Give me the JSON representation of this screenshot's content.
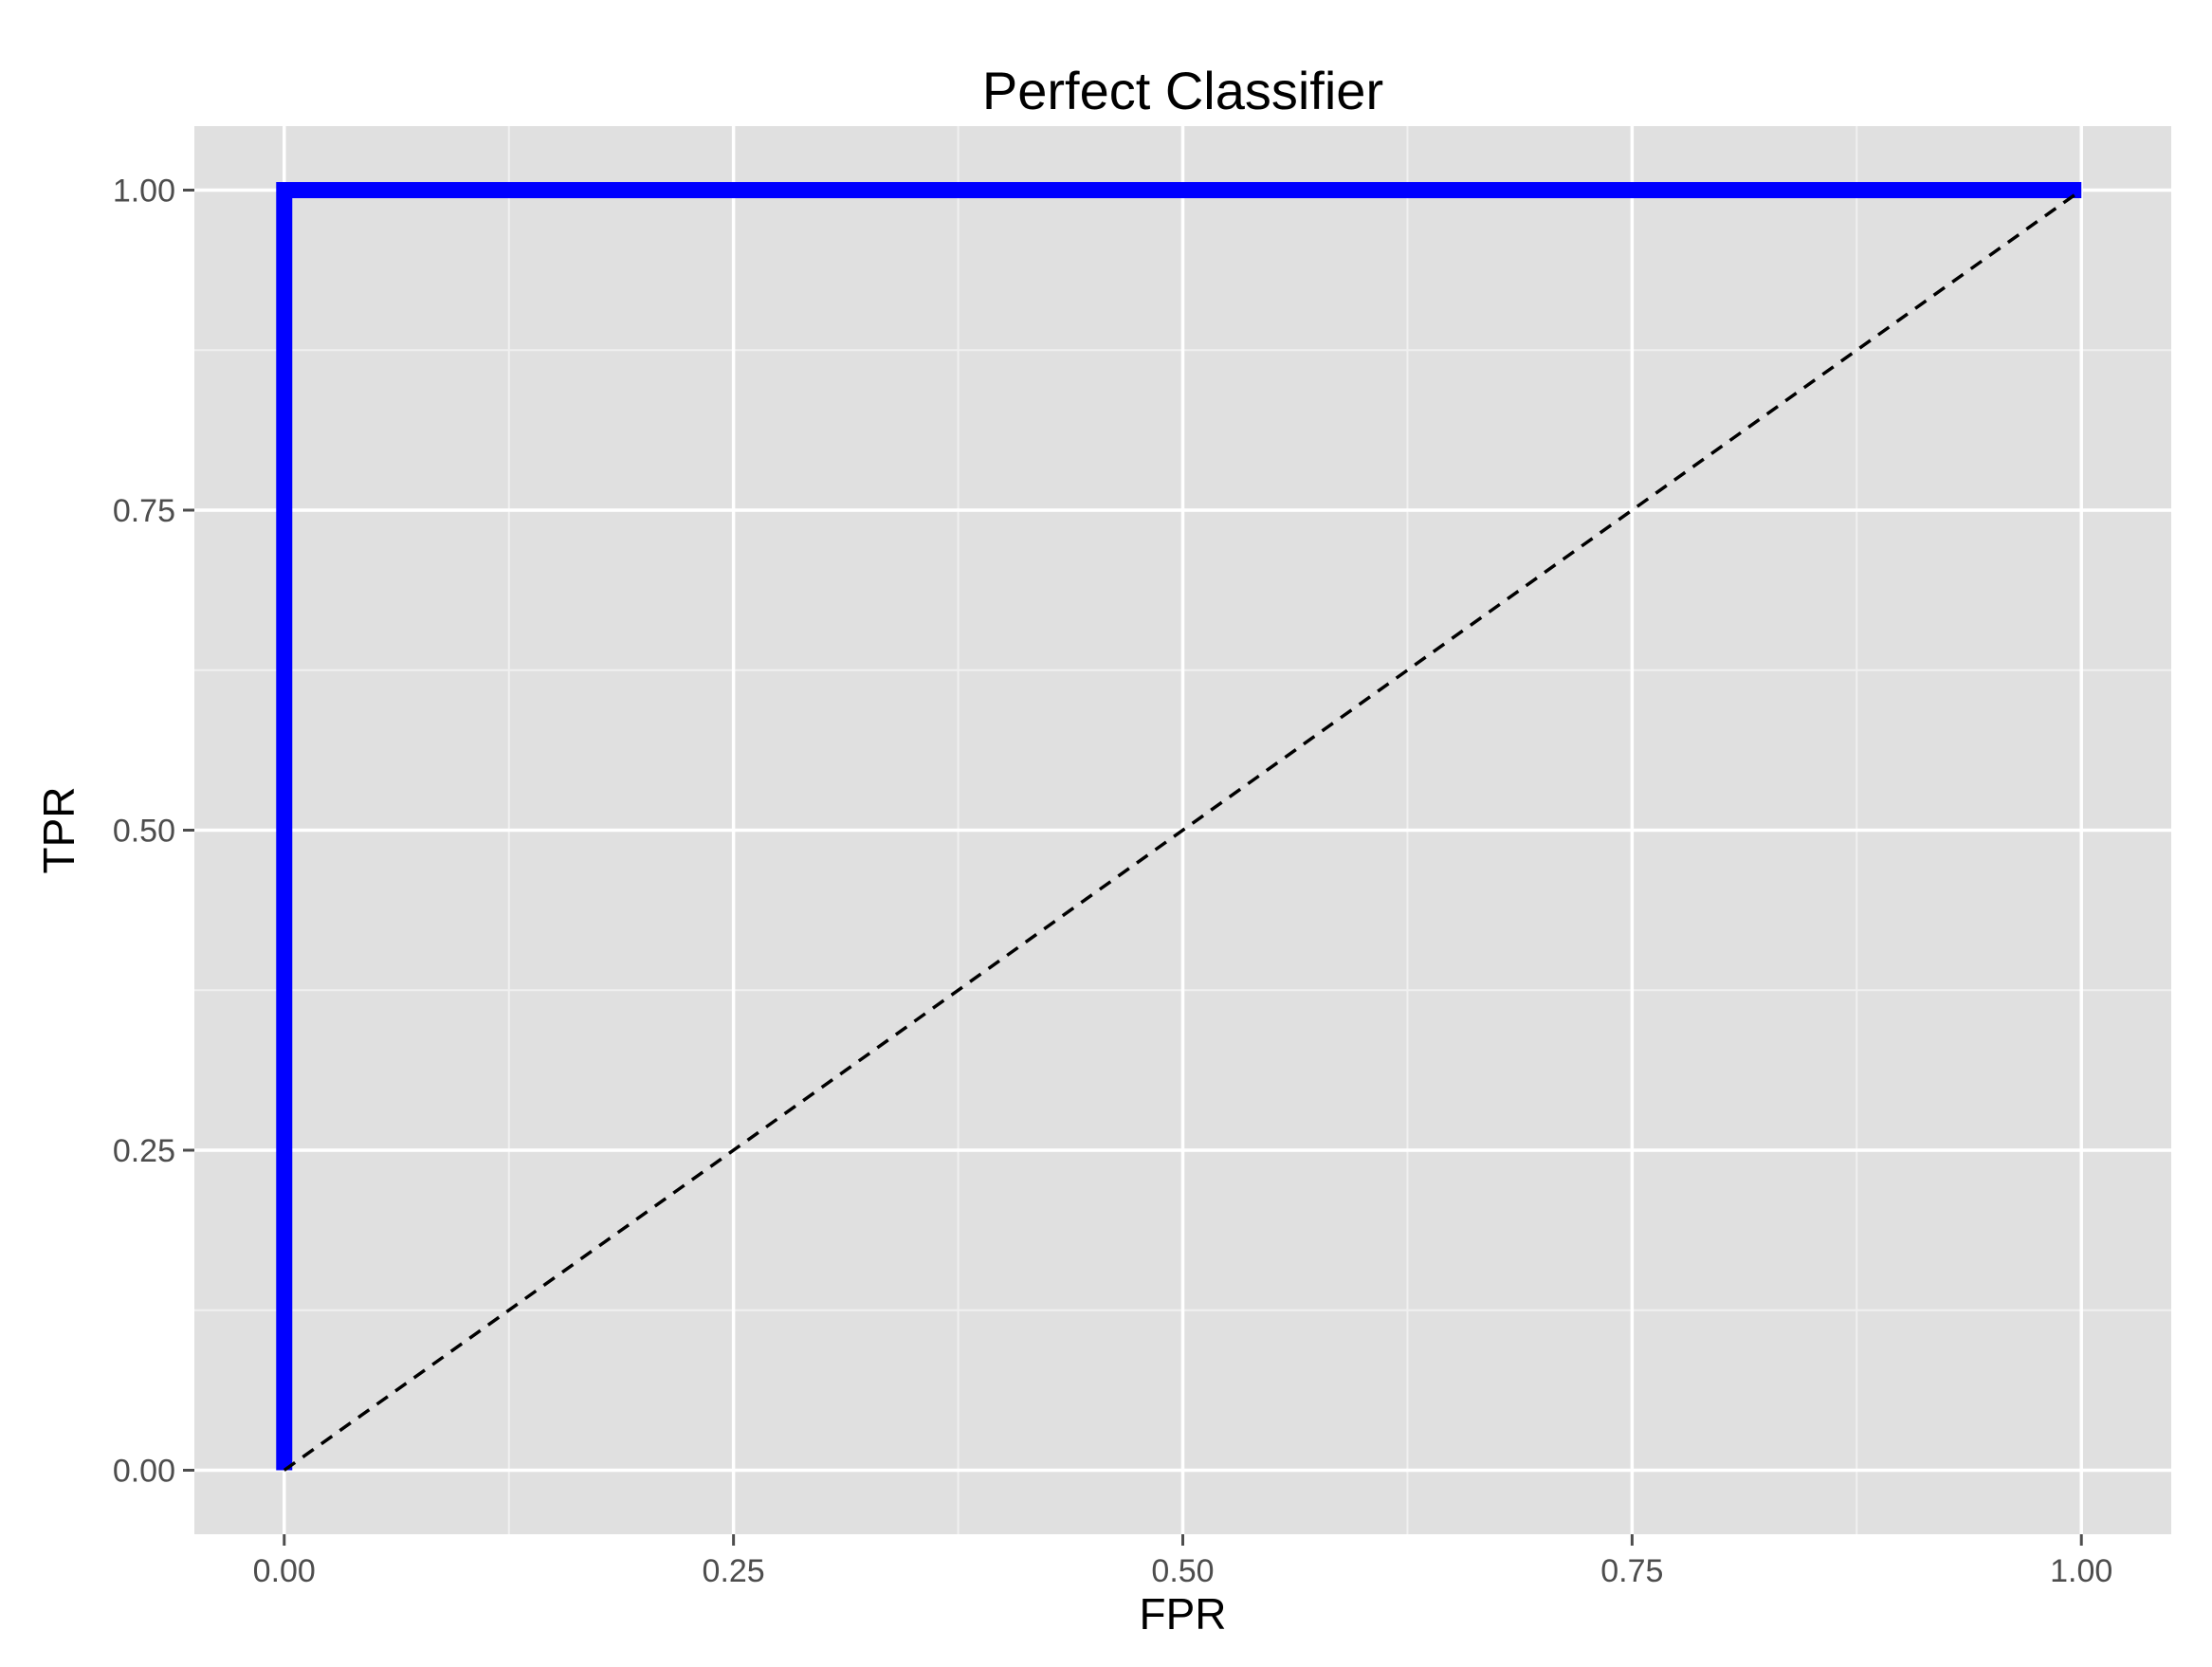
{
  "chart_data": {
    "type": "line",
    "title": "Perfect Classifier",
    "xlabel": "FPR",
    "ylabel": "TPR",
    "xlim": [
      -0.05,
      1.05
    ],
    "ylim": [
      -0.05,
      1.05
    ],
    "x_ticks": [
      0,
      0.25,
      0.5,
      0.75,
      1
    ],
    "x_tick_labels": [
      "0.00",
      "0.25",
      "0.50",
      "0.75",
      "1.00"
    ],
    "y_ticks": [
      0,
      0.25,
      0.5,
      0.75,
      1
    ],
    "y_tick_labels": [
      "0.00",
      "0.25",
      "0.50",
      "0.75",
      "1.00"
    ],
    "minor_breaks": [
      0.125,
      0.375,
      0.625,
      0.875
    ],
    "grid": true,
    "legend": "none",
    "series": [
      {
        "style": "solid",
        "color": "#0000ff",
        "x": [
          0,
          0,
          1
        ],
        "y": [
          0,
          1,
          1
        ]
      },
      {
        "style": "dashed",
        "color": "#000000",
        "x": [
          0,
          1
        ],
        "y": [
          0,
          1
        ]
      }
    ],
    "colors": {
      "panel_background": "#e0e0e0",
      "grid_major": "#ffffff",
      "grid_minor": "#f0f0f0",
      "tick_text": "#4d4d4d",
      "tick_mark": "#4d4d4d"
    }
  }
}
